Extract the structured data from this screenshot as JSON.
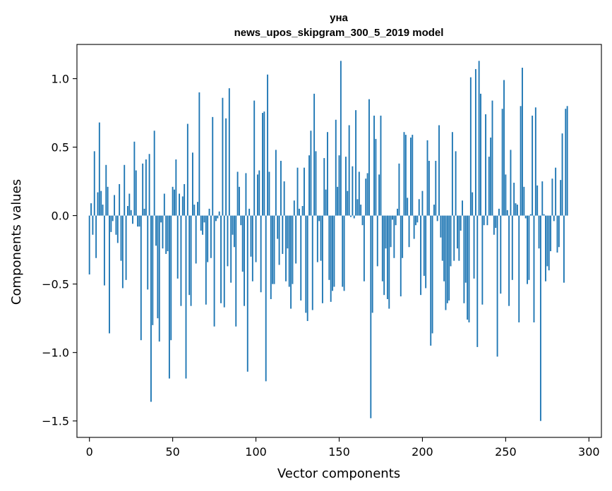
{
  "chart_data": {
    "type": "bar",
    "title_line1": "уна",
    "title_line2": "news_upos_skipgram_300_5_2019 model",
    "xlabel": "Vector components",
    "ylabel": "Components values",
    "xlim": [
      -7.5,
      307.5
    ],
    "ylim": [
      -1.62,
      1.25
    ],
    "xticks": [
      0,
      50,
      100,
      150,
      200,
      250,
      300
    ],
    "yticks": [
      -1.5,
      -1.0,
      -0.5,
      0.0,
      0.5,
      1.0
    ],
    "ytick_labels": [
      "−1.5",
      "−1.0",
      "−0.5",
      "0.0",
      "0.5",
      "1.0"
    ],
    "bar_color": "#1f77b4",
    "values": [
      -0.43,
      0.09,
      -0.14,
      0.47,
      -0.31,
      0.17,
      0.68,
      0.18,
      0.08,
      -0.51,
      0.37,
      0.21,
      -0.86,
      -0.12,
      -0.04,
      0.15,
      -0.14,
      -0.2,
      0.23,
      -0.33,
      -0.53,
      0.37,
      -0.47,
      0.07,
      0.16,
      0.04,
      -0.06,
      0.54,
      0.33,
      -0.08,
      -0.08,
      -0.91,
      0.38,
      0.05,
      0.41,
      -0.54,
      0.45,
      -1.36,
      -0.8,
      0.62,
      -0.22,
      -0.75,
      -0.92,
      -0.05,
      -0.24,
      0.16,
      -0.28,
      -0.26,
      -1.19,
      -0.91,
      0.21,
      0.19,
      0.41,
      -0.46,
      0.16,
      -0.66,
      0.14,
      0.23,
      -1.19,
      0.67,
      -0.58,
      -0.66,
      0.46,
      0.08,
      -0.35,
      0.1,
      0.9,
      -0.11,
      -0.14,
      -0.05,
      -0.65,
      -0.34,
      0.05,
      -0.31,
      0.72,
      -0.81,
      -0.04,
      -0.02,
      0.03,
      -0.64,
      0.86,
      -0.67,
      0.71,
      -0.37,
      0.93,
      -0.49,
      -0.14,
      -0.23,
      -0.81,
      0.32,
      0.21,
      -0.07,
      -0.41,
      -0.66,
      0.31,
      -1.14,
      0.05,
      -0.3,
      -0.48,
      0.84,
      -0.34,
      0.3,
      0.33,
      -0.56,
      0.75,
      0.76,
      -1.21,
      1.03,
      0.32,
      -0.61,
      -0.5,
      -0.5,
      0.48,
      -0.17,
      -0.36,
      0.4,
      -0.28,
      0.25,
      -0.48,
      -0.24,
      -0.52,
      -0.68,
      -0.5,
      0.11,
      -0.35,
      0.35,
      0.05,
      -0.62,
      0.07,
      0.35,
      -0.71,
      -0.77,
      0.44,
      0.62,
      -0.69,
      0.89,
      0.47,
      -0.34,
      -0.04,
      -0.33,
      -0.64,
      0.42,
      0.19,
      0.61,
      -0.47,
      -0.63,
      -0.55,
      -0.52,
      0.7,
      0.21,
      0.44,
      1.13,
      -0.52,
      -0.55,
      0.43,
      0.18,
      0.66,
      -0.01,
      0.36,
      -0.02,
      0.77,
      0.12,
      0.32,
      0.08,
      -0.07,
      -0.48,
      0.27,
      0.31,
      0.85,
      -1.48,
      -0.71,
      0.73,
      0.56,
      -0.37,
      0.3,
      0.73,
      -0.48,
      -0.58,
      -0.24,
      -0.61,
      -0.68,
      -0.23,
      -0.03,
      -0.31,
      -0.07,
      0.05,
      0.38,
      -0.59,
      -0.31,
      0.61,
      0.59,
      0.13,
      -0.23,
      0.57,
      0.59,
      -0.17,
      -0.07,
      -0.05,
      0.12,
      -0.58,
      0.18,
      -0.44,
      -0.53,
      0.55,
      0.4,
      -0.95,
      -0.86,
      0.08,
      0.4,
      -0.04,
      0.66,
      -0.16,
      -0.33,
      -0.48,
      -0.69,
      -0.64,
      -0.62,
      -0.37,
      0.61,
      -0.33,
      0.47,
      -0.24,
      -0.33,
      -0.11,
      0.11,
      -0.64,
      -0.49,
      -0.76,
      -0.78,
      1.01,
      0.17,
      -0.46,
      1.07,
      -0.96,
      1.13,
      0.89,
      -0.65,
      -0.07,
      0.74,
      -0.07,
      0.43,
      0.57,
      0.84,
      -0.14,
      -0.09,
      -1.03,
      0.05,
      -0.57,
      0.78,
      0.99,
      0.3,
      0.04,
      -0.66,
      0.48,
      -0.47,
      0.24,
      0.09,
      0.08,
      -0.78,
      0.8,
      1.08,
      0.21,
      -0.02,
      -0.5,
      -0.47,
      0.01,
      0.73,
      -0.78,
      0.79,
      0.22,
      -0.24,
      -1.5,
      0.25,
      0.01,
      -0.48,
      -0.37,
      -0.4,
      -0.26,
      0.27,
      -0.04,
      0.35,
      -0.27,
      -0.23,
      0.26,
      0.6,
      -0.49,
      0.78,
      0.8
    ],
    "grid": false,
    "legend": "none"
  }
}
